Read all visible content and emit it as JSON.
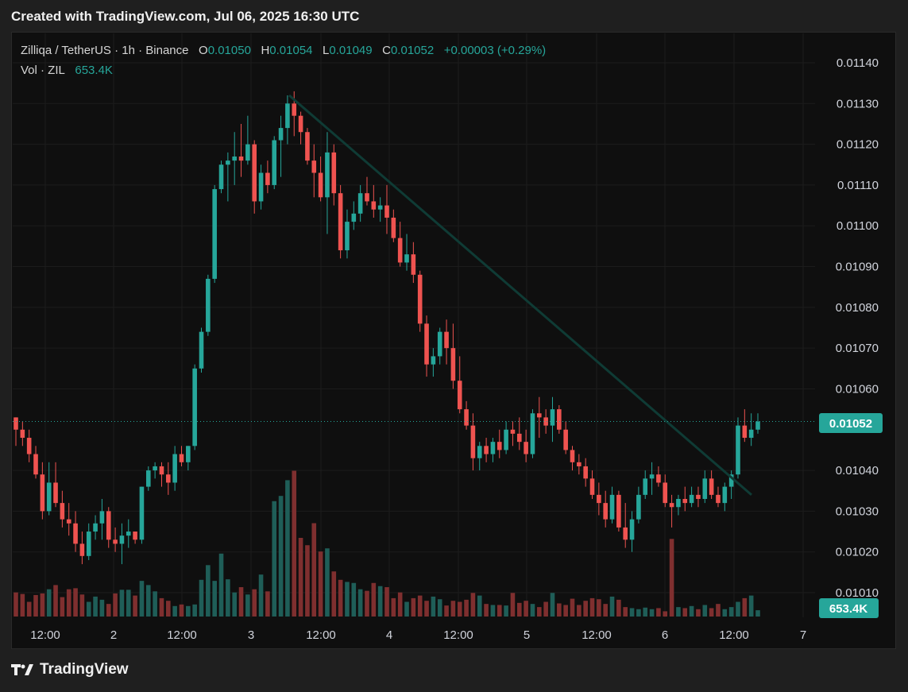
{
  "header": {
    "title": "Created with TradingView.com, Jul 06, 2025 16:30 UTC"
  },
  "legend": {
    "symbol": "Zilliqa / TetherUS · 1h · Binance",
    "o_label": "O",
    "o_value": "0.01050",
    "h_label": "H",
    "h_value": "0.01054",
    "l_label": "L",
    "l_value": "0.01049",
    "c_label": "C",
    "c_value": "0.01052",
    "change": "+0.00003 (+0.29%)",
    "vol_label": "Vol · ZIL",
    "vol_value": "653.4K"
  },
  "footer": {
    "brand": "TradingView",
    "logo_icon": "tradingview-logo-icon"
  },
  "colors": {
    "up": "#26a69a",
    "down": "#ef5350",
    "up_vol": "#1f5e58",
    "down_vol": "#7f2f2f",
    "trendline": "#0f3b35",
    "grid": "#1c1c1c",
    "last_price_bg": "#26a69a"
  },
  "chart_data": {
    "type": "candlestick",
    "y_axis": {
      "ticks": [
        "0.01140",
        "0.01130",
        "0.01120",
        "0.01110",
        "0.01100",
        "0.01090",
        "0.01080",
        "0.01070",
        "0.01060",
        "0.01040",
        "0.01030",
        "0.01020",
        "0.01010"
      ],
      "range": [
        0.01004,
        0.01147
      ]
    },
    "x_axis": {
      "ticks": [
        "12:00",
        "2",
        "12:00",
        "3",
        "12:00",
        "4",
        "12:00",
        "5",
        "12:00",
        "6",
        "12:00",
        "7"
      ]
    },
    "last_price": "0.01052",
    "last_volume": "653.4K",
    "trendline": {
      "start_price": 0.01132,
      "end_price": 0.01034,
      "start_time": "3 ~09:00",
      "end_time": "6 ~16:00"
    },
    "candles": [
      [
        0.01053,
        0.01053,
        0.01046,
        0.0105,
        46
      ],
      [
        0.0105,
        0.01052,
        0.01046,
        0.01048,
        43
      ],
      [
        0.01048,
        0.0105,
        0.01042,
        0.01044,
        28
      ],
      [
        0.01044,
        0.01046,
        0.01038,
        0.01039,
        41
      ],
      [
        0.01039,
        0.01042,
        0.01028,
        0.0103,
        44
      ],
      [
        0.0103,
        0.01042,
        0.01029,
        0.01037,
        52
      ],
      [
        0.01037,
        0.01042,
        0.01031,
        0.01032,
        60
      ],
      [
        0.01032,
        0.01035,
        0.01026,
        0.01028,
        37
      ],
      [
        0.01028,
        0.01032,
        0.01024,
        0.01027,
        52
      ],
      [
        0.01027,
        0.0103,
        0.0102,
        0.01022,
        54
      ],
      [
        0.01022,
        0.01025,
        0.01017,
        0.01019,
        42
      ],
      [
        0.01019,
        0.01027,
        0.01018,
        0.01025,
        28
      ],
      [
        0.01025,
        0.01029,
        0.01023,
        0.01027,
        38
      ],
      [
        0.01027,
        0.01033,
        0.01023,
        0.0103,
        32
      ],
      [
        0.0103,
        0.01031,
        0.01021,
        0.01023,
        24
      ],
      [
        0.01023,
        0.01026,
        0.0102,
        0.01022,
        44
      ],
      [
        0.01022,
        0.01027,
        0.01017,
        0.01024,
        51
      ],
      [
        0.01024,
        0.01028,
        0.01021,
        0.01025,
        51
      ],
      [
        0.01025,
        0.01025,
        0.01022,
        0.01023,
        40
      ],
      [
        0.01023,
        0.01036,
        0.01022,
        0.01036,
        68
      ],
      [
        0.01036,
        0.01041,
        0.01035,
        0.0104,
        60
      ],
      [
        0.0104,
        0.01042,
        0.01038,
        0.01041,
        48
      ],
      [
        0.01041,
        0.01042,
        0.01036,
        0.01039,
        35
      ],
      [
        0.01039,
        0.01042,
        0.01034,
        0.01037,
        30
      ],
      [
        0.01037,
        0.01046,
        0.01035,
        0.01044,
        20
      ],
      [
        0.01044,
        0.01046,
        0.01041,
        0.01042,
        23
      ],
      [
        0.01042,
        0.01046,
        0.0104,
        0.01046,
        20
      ],
      [
        0.01046,
        0.01066,
        0.01045,
        0.01065,
        23
      ],
      [
        0.01065,
        0.01075,
        0.01064,
        0.01074,
        70
      ],
      [
        0.01074,
        0.01088,
        0.01073,
        0.01087,
        98
      ],
      [
        0.01087,
        0.0111,
        0.01086,
        0.01109,
        68
      ],
      [
        0.01109,
        0.01116,
        0.01108,
        0.01115,
        120
      ],
      [
        0.01115,
        0.01118,
        0.01106,
        0.01116,
        71
      ],
      [
        0.01116,
        0.01123,
        0.0111,
        0.01117,
        46
      ],
      [
        0.01117,
        0.01125,
        0.01112,
        0.01116,
        56
      ],
      [
        0.01116,
        0.01127,
        0.01115,
        0.0112,
        42
      ],
      [
        0.0112,
        0.01121,
        0.01103,
        0.01106,
        52
      ],
      [
        0.01106,
        0.01115,
        0.01104,
        0.01113,
        80
      ],
      [
        0.01113,
        0.01116,
        0.01108,
        0.0111,
        48
      ],
      [
        0.0111,
        0.01122,
        0.01109,
        0.01121,
        220
      ],
      [
        0.01121,
        0.01127,
        0.01112,
        0.01124,
        230
      ],
      [
        0.01124,
        0.01132,
        0.0112,
        0.0113,
        260
      ],
      [
        0.0113,
        0.01133,
        0.01122,
        0.01127,
        278
      ],
      [
        0.01127,
        0.01128,
        0.0112,
        0.01123,
        150
      ],
      [
        0.01123,
        0.01124,
        0.01115,
        0.01116,
        136
      ],
      [
        0.01116,
        0.0112,
        0.01107,
        0.01113,
        178
      ],
      [
        0.01113,
        0.01117,
        0.01106,
        0.01107,
        124
      ],
      [
        0.01107,
        0.01123,
        0.01098,
        0.01118,
        130
      ],
      [
        0.01118,
        0.0112,
        0.01105,
        0.01108,
        86
      ],
      [
        0.01108,
        0.0111,
        0.01092,
        0.01094,
        70
      ],
      [
        0.01094,
        0.01104,
        0.01092,
        0.01101,
        66
      ],
      [
        0.01101,
        0.01106,
        0.01099,
        0.01103,
        64
      ],
      [
        0.01103,
        0.0111,
        0.01101,
        0.01108,
        52
      ],
      [
        0.01108,
        0.01112,
        0.01105,
        0.01106,
        49
      ],
      [
        0.01106,
        0.0111,
        0.01102,
        0.01104,
        64
      ],
      [
        0.01104,
        0.01107,
        0.01101,
        0.01105,
        58
      ],
      [
        0.01105,
        0.0111,
        0.01098,
        0.01102,
        56
      ],
      [
        0.01102,
        0.01104,
        0.01096,
        0.01097,
        35
      ],
      [
        0.01097,
        0.01101,
        0.0109,
        0.01091,
        46
      ],
      [
        0.01091,
        0.01098,
        0.01089,
        0.01093,
        28
      ],
      [
        0.01093,
        0.01096,
        0.01086,
        0.01088,
        35
      ],
      [
        0.01088,
        0.01089,
        0.01074,
        0.01076,
        40
      ],
      [
        0.01076,
        0.01078,
        0.01063,
        0.01066,
        30
      ],
      [
        0.01066,
        0.0107,
        0.01063,
        0.01068,
        38
      ],
      [
        0.01068,
        0.01075,
        0.01066,
        0.01074,
        33
      ],
      [
        0.01074,
        0.01077,
        0.01066,
        0.0107,
        21
      ],
      [
        0.0107,
        0.01076,
        0.0106,
        0.01062,
        30
      ],
      [
        0.01062,
        0.01068,
        0.01054,
        0.01055,
        28
      ],
      [
        0.01055,
        0.01057,
        0.0105,
        0.01051,
        32
      ],
      [
        0.01051,
        0.01054,
        0.0104,
        0.01043,
        45
      ],
      [
        0.01043,
        0.01047,
        0.0104,
        0.01046,
        40
      ],
      [
        0.01046,
        0.01048,
        0.01042,
        0.01044,
        24
      ],
      [
        0.01044,
        0.01048,
        0.01042,
        0.01047,
        22
      ],
      [
        0.01047,
        0.0105,
        0.01043,
        0.01045,
        22
      ],
      [
        0.01045,
        0.01052,
        0.01044,
        0.0105,
        21
      ],
      [
        0.0105,
        0.01052,
        0.01046,
        0.01049,
        45
      ],
      [
        0.01049,
        0.01053,
        0.01045,
        0.01047,
        26
      ],
      [
        0.01047,
        0.0105,
        0.01042,
        0.01044,
        30
      ],
      [
        0.01044,
        0.01055,
        0.01043,
        0.01054,
        24
      ],
      [
        0.01054,
        0.01058,
        0.01048,
        0.01053,
        18
      ],
      [
        0.01053,
        0.01055,
        0.01049,
        0.01051,
        28
      ],
      [
        0.01051,
        0.01058,
        0.01047,
        0.01055,
        45
      ],
      [
        0.01055,
        0.01056,
        0.01049,
        0.0105,
        25
      ],
      [
        0.0105,
        0.01052,
        0.01044,
        0.01045,
        22
      ],
      [
        0.01045,
        0.01046,
        0.0104,
        0.01042,
        34
      ],
      [
        0.01042,
        0.01044,
        0.01039,
        0.01041,
        22
      ],
      [
        0.01041,
        0.01043,
        0.01036,
        0.01038,
        30
      ],
      [
        0.01038,
        0.0104,
        0.01033,
        0.01034,
        35
      ],
      [
        0.01034,
        0.01037,
        0.01029,
        0.01032,
        33
      ],
      [
        0.01032,
        0.01035,
        0.01026,
        0.01028,
        24
      ],
      [
        0.01028,
        0.01036,
        0.01027,
        0.01034,
        38
      ],
      [
        0.01034,
        0.01035,
        0.01025,
        0.01026,
        32
      ],
      [
        0.01026,
        0.01032,
        0.01021,
        0.01023,
        18
      ],
      [
        0.01023,
        0.0103,
        0.0102,
        0.01028,
        16
      ],
      [
        0.01028,
        0.01036,
        0.01027,
        0.01034,
        14
      ],
      [
        0.01034,
        0.0104,
        0.01033,
        0.01038,
        17
      ],
      [
        0.01038,
        0.01042,
        0.01034,
        0.01039,
        14
      ],
      [
        0.01039,
        0.01041,
        0.01036,
        0.01037,
        16
      ],
      [
        0.01037,
        0.01039,
        0.01031,
        0.01032,
        10
      ],
      [
        0.01032,
        0.01034,
        0.01026,
        0.01031,
        148
      ],
      [
        0.01031,
        0.01034,
        0.01029,
        0.01033,
        18
      ],
      [
        0.01033,
        0.01036,
        0.0103,
        0.01032,
        16
      ],
      [
        0.01032,
        0.01036,
        0.01031,
        0.01034,
        20
      ],
      [
        0.01034,
        0.01036,
        0.01031,
        0.01033,
        14
      ],
      [
        0.01033,
        0.0104,
        0.01032,
        0.01038,
        22
      ],
      [
        0.01038,
        0.0104,
        0.01033,
        0.01034,
        16
      ],
      [
        0.01034,
        0.01036,
        0.01031,
        0.01032,
        24
      ],
      [
        0.01032,
        0.01037,
        0.0103,
        0.01036,
        14
      ],
      [
        0.01036,
        0.0104,
        0.01033,
        0.01039,
        18
      ],
      [
        0.01039,
        0.01053,
        0.01038,
        0.01051,
        28
      ],
      [
        0.01051,
        0.01055,
        0.01047,
        0.01048,
        35
      ],
      [
        0.01048,
        0.01054,
        0.01046,
        0.0105,
        40
      ],
      [
        0.0105,
        0.01054,
        0.01049,
        0.01052,
        12
      ]
    ]
  }
}
